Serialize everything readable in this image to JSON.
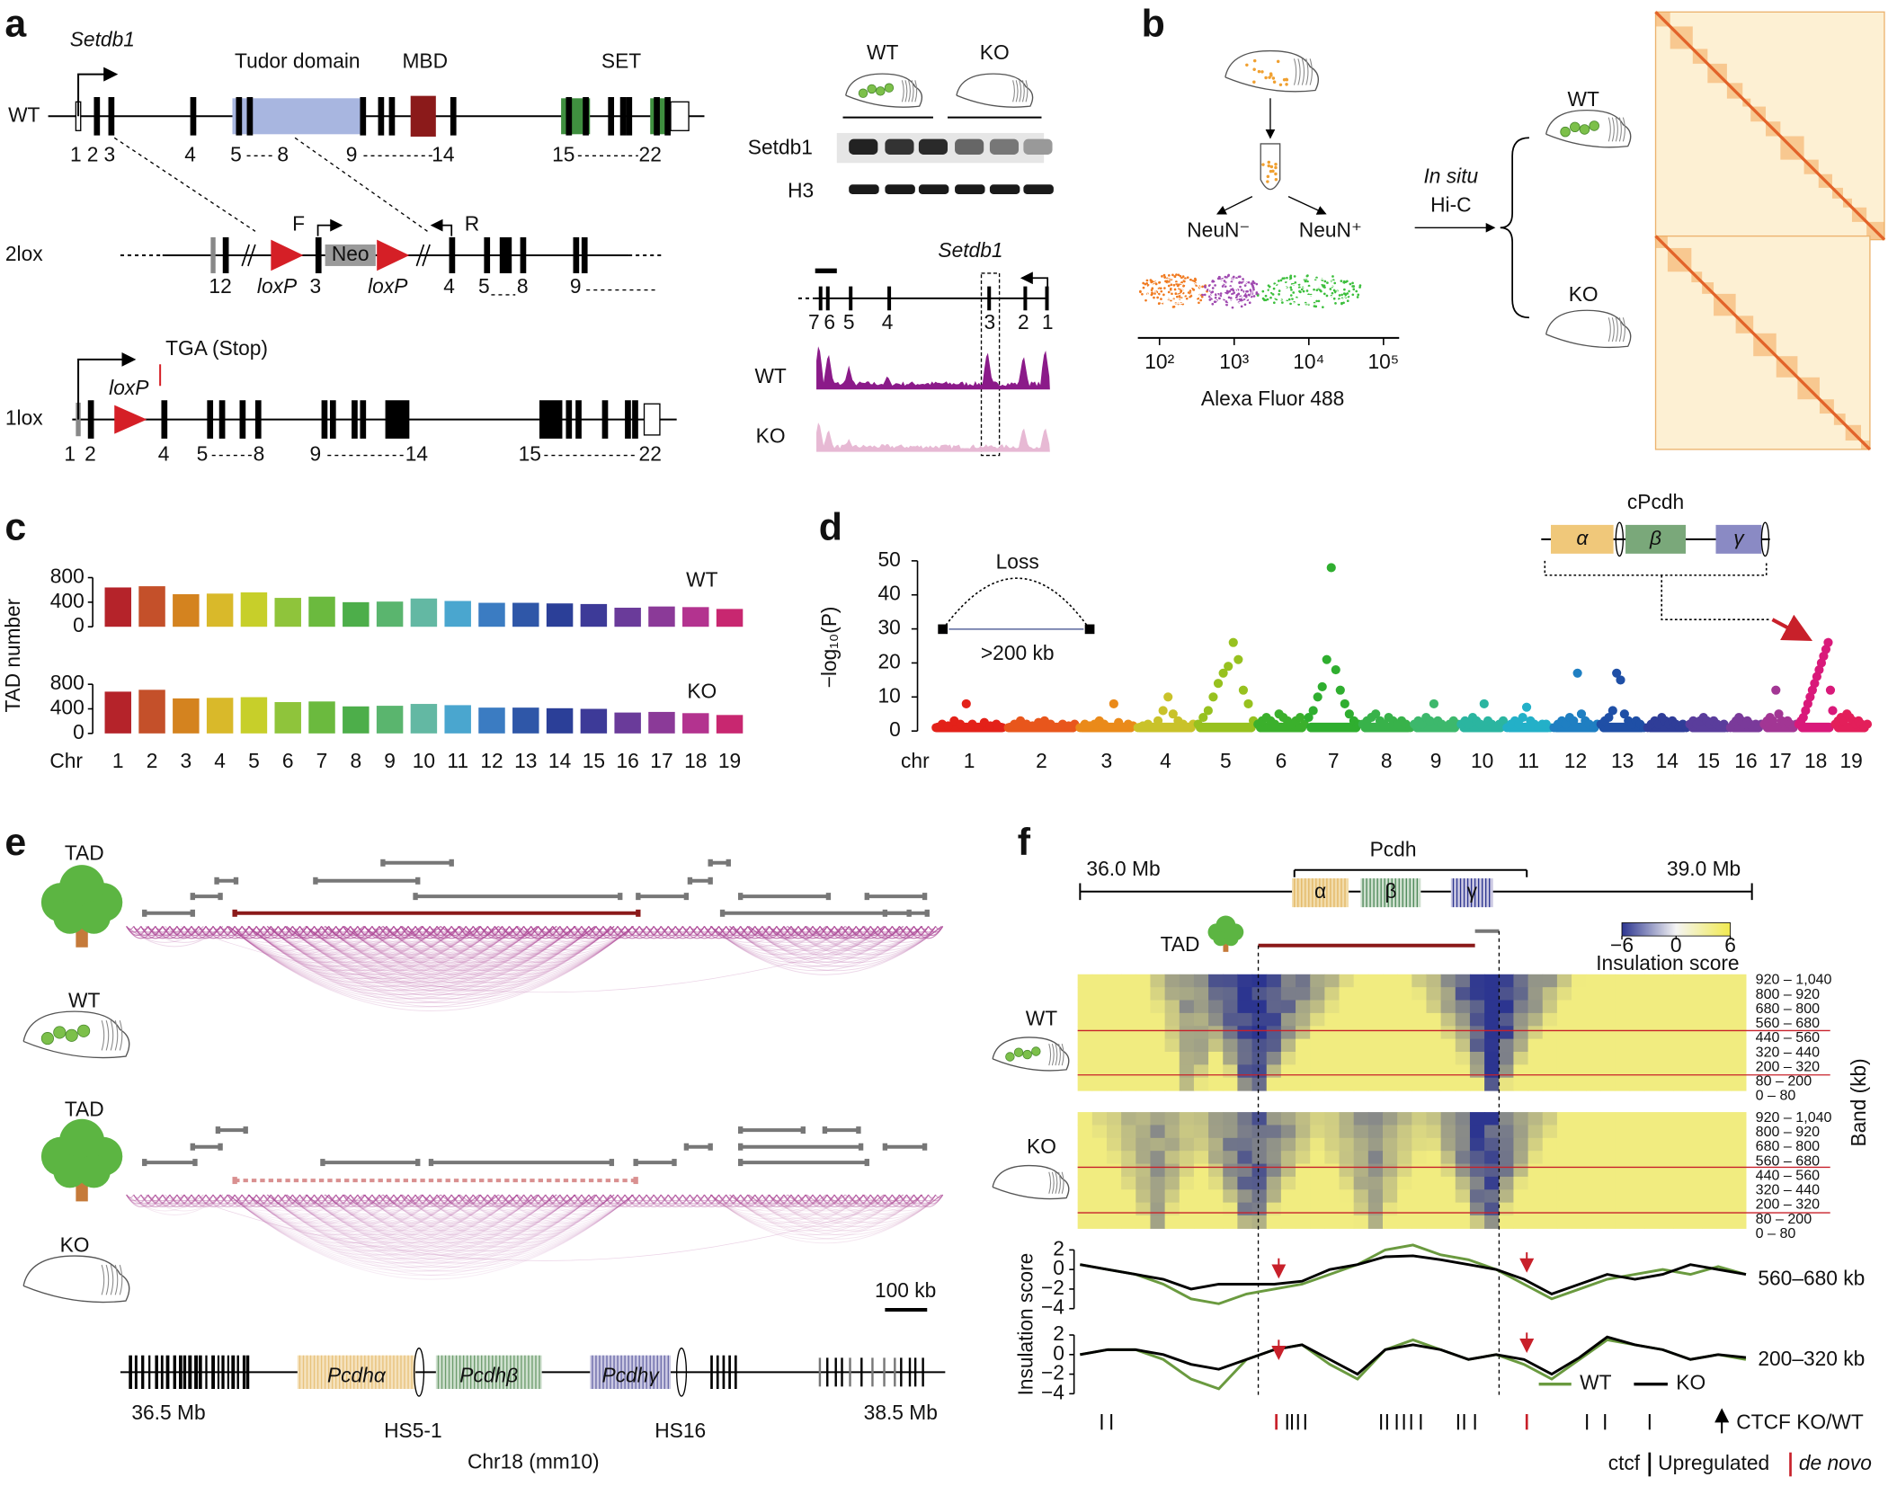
{
  "labels": {
    "a": "a",
    "b": "b",
    "c": "c",
    "d": "d",
    "e": "e",
    "f": "f"
  },
  "panel_a": {
    "gene": "Setdb1",
    "tudor": "Tudor domain",
    "mbd": "MBD",
    "set": "SET",
    "wt_row": "WT",
    "lox2_row": "2lox",
    "lox1_row": "1lox",
    "wt_exons": [
      "1",
      "2",
      "3",
      "4",
      "5",
      "8",
      "9",
      "14",
      "15",
      "22"
    ],
    "lox2_labels": [
      "12",
      "F",
      "R",
      "Neo",
      "loxP",
      "loxP",
      "3",
      "4",
      "5",
      "8",
      "9"
    ],
    "lox1_labels": [
      "TGA (Stop)",
      "loxP",
      "1",
      "2",
      "4",
      "5",
      "8",
      "9",
      "14",
      "15",
      "22"
    ],
    "blot_groups": [
      "WT",
      "KO"
    ],
    "blot_rows": [
      "Setdb1",
      "H3"
    ],
    "track_gene": "Setdb1",
    "track_exons": [
      "7",
      "6",
      "5",
      "4",
      "3",
      "2",
      "1"
    ],
    "track_rows": [
      "WT",
      "KO"
    ]
  },
  "panel_b": {
    "neun": [
      "NeuN⁻",
      "NeuN⁺"
    ],
    "axis_ticks": [
      "10²",
      "10³",
      "10⁴",
      "10⁵"
    ],
    "axis_label": "Alexa Fluor 488",
    "method": [
      "In situ",
      "Hi-C"
    ],
    "samples": [
      "WT",
      "KO"
    ]
  },
  "chart_data": [
    {
      "type": "bar",
      "y_label": "TAD number",
      "x_label": "Chr",
      "categories": [
        "1",
        "2",
        "3",
        "4",
        "5",
        "6",
        "7",
        "8",
        "9",
        "10",
        "11",
        "12",
        "13",
        "14",
        "15",
        "16",
        "17",
        "18",
        "19"
      ],
      "colors": [
        "#b5232a",
        "#c4502a",
        "#d4831f",
        "#d9b92a",
        "#c7cf2a",
        "#8fc43b",
        "#6bba3e",
        "#4dae4a",
        "#5ab56e",
        "#63b8a3",
        "#4aa6cf",
        "#3b7cc2",
        "#2f57a8",
        "#2b3f98",
        "#3d3a98",
        "#6a3b9a",
        "#8b3a98",
        "#b3338f",
        "#c82770"
      ],
      "ylim": [
        0,
        800
      ],
      "yticks": [
        0,
        400,
        800
      ],
      "series": [
        {
          "name": "WT",
          "values": [
            640,
            660,
            530,
            540,
            560,
            470,
            490,
            400,
            410,
            460,
            420,
            390,
            390,
            380,
            370,
            310,
            330,
            320,
            290
          ]
        },
        {
          "name": "KO",
          "values": [
            680,
            710,
            570,
            580,
            590,
            510,
            520,
            440,
            450,
            480,
            460,
            420,
            420,
            410,
            400,
            340,
            350,
            330,
            300
          ]
        }
      ]
    },
    {
      "type": "manhattan",
      "y_label": "−log₁₀(P)",
      "x_label": "chr",
      "categories": [
        "1",
        "2",
        "3",
        "4",
        "5",
        "6",
        "7",
        "8",
        "9",
        "10",
        "11",
        "12",
        "13",
        "14",
        "15",
        "16",
        "17",
        "18",
        "19"
      ],
      "colors": [
        "#e32119",
        "#e8561c",
        "#ea8a1a",
        "#c9c22a",
        "#97c11f",
        "#3bb02c",
        "#2fae2f",
        "#38b24a",
        "#3db86c",
        "#2bb5a0",
        "#23b0c8",
        "#1f7fc2",
        "#1f4fa6",
        "#2f3d98",
        "#5a3d9c",
        "#7a3a9a",
        "#a23694",
        "#d9197a",
        "#e31f5a"
      ],
      "ylim": [
        0,
        50
      ],
      "yticks": [
        0,
        10,
        20,
        30,
        40,
        50
      ],
      "points": [
        [
          1,
          2,
          1.5,
          3,
          2,
          8,
          2,
          1,
          2.5,
          1.5,
          2,
          1
        ],
        [
          1,
          2,
          3,
          2,
          1.5,
          2.5,
          3,
          2,
          1,
          2,
          1.5,
          2
        ],
        [
          1,
          2,
          1.5,
          2,
          3,
          2,
          1,
          8,
          2.5,
          1,
          2,
          1.5
        ],
        [
          1,
          1.5,
          2,
          1,
          3,
          6,
          10,
          5,
          3,
          2,
          1,
          2
        ],
        [
          2,
          4,
          6,
          10,
          14,
          17,
          19,
          26,
          21,
          12,
          8,
          3
        ],
        [
          2,
          3,
          4,
          3,
          2,
          5,
          4,
          3,
          2,
          3,
          4,
          2
        ],
        [
          4,
          6,
          10,
          13,
          21,
          48,
          18,
          12,
          8,
          5,
          3,
          2
        ],
        [
          2,
          3,
          4,
          5,
          3,
          2,
          4,
          3,
          2,
          3,
          2,
          1
        ],
        [
          2,
          3,
          2,
          4,
          3,
          8,
          3,
          2,
          1,
          2,
          3,
          2
        ],
        [
          2,
          3,
          2,
          4,
          3,
          2,
          8,
          3,
          2,
          1,
          2,
          3
        ],
        [
          1,
          2,
          3,
          2,
          4,
          7,
          3,
          2,
          1,
          2,
          2,
          1
        ],
        [
          1,
          2,
          3,
          2,
          4,
          3,
          17,
          5,
          3,
          2,
          1,
          2
        ],
        [
          2,
          3,
          4,
          6,
          17,
          15,
          5,
          3,
          2,
          3,
          2,
          1
        ],
        [
          1,
          2,
          3,
          2,
          4,
          3,
          2,
          3,
          2,
          1,
          2,
          1
        ],
        [
          2,
          3,
          2,
          3,
          4,
          3,
          2,
          3,
          2,
          1,
          2,
          1
        ],
        [
          1,
          2,
          3,
          4,
          3,
          2,
          3,
          2,
          1,
          2,
          1,
          2
        ],
        [
          2,
          3,
          4,
          3,
          12,
          5,
          3,
          2,
          3,
          2,
          1,
          2
        ],
        [
          2,
          3,
          4,
          6,
          8,
          10,
          12,
          14,
          16,
          18,
          20,
          22,
          24,
          26,
          12,
          6
        ],
        [
          2,
          3,
          4,
          3,
          5,
          4,
          3,
          2,
          3,
          2,
          1,
          2
        ]
      ],
      "annotations": {
        "loss": "Loss",
        "size": ">200 kb",
        "cluster": "cPcdh",
        "genes": [
          "α",
          "β",
          "γ"
        ]
      }
    },
    {
      "type": "line",
      "y_label": "Insulation score",
      "title": "560–680 kb",
      "ylim": [
        -4,
        2
      ],
      "yticks": [
        2,
        0,
        {
          "value": -2,
          "label": "−2"
        },
        {
          "value": -4,
          "label": "−4"
        }
      ],
      "series": [
        {
          "color": "#6a9a3f",
          "values": [
            0.5,
            0,
            -0.5,
            -1.5,
            -3,
            -3.5,
            -2.5,
            -2,
            -1.5,
            -0.5,
            0.5,
            2,
            2.5,
            1.5,
            1,
            0,
            -1.5,
            -3,
            -2,
            -1,
            -0.5,
            0,
            -0.5,
            0.3,
            -0.5
          ]
        },
        {
          "color": "#000000",
          "values": [
            0.5,
            0,
            -0.5,
            -1,
            -2,
            -1.5,
            -1.5,
            -1.5,
            -1.2,
            0,
            0.5,
            1.3,
            1.4,
            1,
            0.5,
            0,
            -1,
            -2.5,
            -1.5,
            -0.5,
            -1,
            -0.5,
            0.5,
            0,
            -0.5
          ]
        }
      ]
    },
    {
      "type": "line",
      "title": "200–320 kb",
      "ylim": [
        -4,
        2
      ],
      "yticks": [
        2,
        0,
        {
          "value": -2,
          "label": "−2"
        },
        {
          "value": -4,
          "label": "−4"
        }
      ],
      "series": [
        {
          "name": "WT",
          "color": "#6a9a3f",
          "values": [
            0,
            0.5,
            0.5,
            -0.5,
            -2.5,
            -3.5,
            -0.5,
            0.5,
            1,
            -1,
            -2.5,
            0.5,
            1.5,
            0.5,
            -0.5,
            0,
            -1,
            -2.5,
            -0.5,
            1.5,
            1,
            0.5,
            -0.5,
            0,
            -0.5
          ]
        },
        {
          "name": "KO",
          "color": "#000000",
          "values": [
            0,
            0.5,
            0.5,
            0,
            -1,
            -1.5,
            -0.5,
            0.5,
            1,
            -0.5,
            -2,
            0.5,
            1,
            0.5,
            -0.5,
            0,
            -0.5,
            -2,
            -0.3,
            1.8,
            1,
            0.5,
            -0.5,
            0,
            -0.3
          ]
        }
      ]
    }
  ],
  "panel_e": {
    "rows": [
      {
        "tad": "TAD",
        "sample": "WT"
      },
      {
        "tad": "TAD",
        "sample": "KO"
      }
    ],
    "scale": "100 kb",
    "genes": [
      "Pcdhα",
      "Pcdhβ",
      "Pcdhγ"
    ],
    "start": "36.5 Mb",
    "end": "38.5 Mb",
    "hs": [
      "HS5-1",
      "HS16"
    ],
    "chrom": "Chr18 (mm10)"
  },
  "panel_f": {
    "start": "36.0 Mb",
    "end": "39.0 Mb",
    "cluster": "Pcdh",
    "genes": [
      "α",
      "β",
      "γ"
    ],
    "tad": "TAD",
    "colorbar": {
      "lim": [
        -6,
        6
      ],
      "ticks": [
        {
          "value": -6,
          "label": "−6"
        },
        0,
        6
      ],
      "label": "Insulation score"
    },
    "samples": [
      "WT",
      "KO"
    ],
    "bands": [
      "920 – 1,040",
      "800 – 920",
      "680 – 800",
      "560 – 680",
      "440 – 560",
      "320 – 440",
      "200 – 320",
      "80 – 200",
      "0 – 80"
    ],
    "band_axis": "Band (kb)",
    "ctcf_label": "CTCF KO/WT",
    "legend": [
      "ctcf",
      "Upregulated",
      "de novo"
    ]
  }
}
